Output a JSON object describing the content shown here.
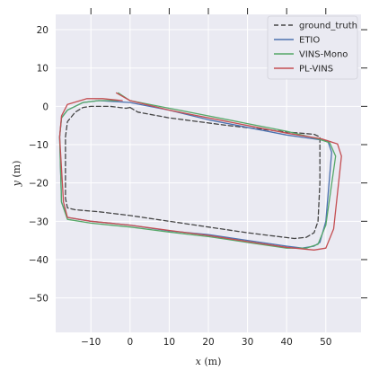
{
  "chart_data": {
    "type": "line",
    "title": "",
    "xlabel_var": "x",
    "xlabel_unit": " (m)",
    "ylabel_var": "y",
    "ylabel_unit": " (m)",
    "xlim": [
      -19,
      59
    ],
    "ylim": [
      -59,
      24
    ],
    "xticks": [
      -10,
      0,
      10,
      20,
      30,
      40,
      50
    ],
    "yticks": [
      20,
      10,
      0,
      -10,
      -20,
      -30,
      -40,
      -50
    ],
    "grid": true,
    "legend_position": "top-right",
    "series": [
      {
        "name": "ground_truth",
        "color": "#444444",
        "dash": "dashed",
        "x": [
          0,
          2,
          10,
          25,
          40,
          47,
          48.5,
          48.5,
          48,
          47,
          45,
          42,
          38,
          30,
          20,
          10,
          0,
          -8,
          -14,
          -16,
          -16.5,
          -16.5,
          -16,
          -14,
          -12,
          -10,
          -5,
          -1,
          0
        ],
        "y": [
          -0.3,
          -1.5,
          -3,
          -5,
          -6.7,
          -7.3,
          -8,
          -20,
          -30,
          -33,
          -34.2,
          -34.5,
          -34,
          -33,
          -31.5,
          -30,
          -28.5,
          -27.5,
          -27,
          -26.5,
          -24,
          -8,
          -4,
          -1.5,
          -0.3,
          0,
          0,
          -0.5,
          -0.3
        ]
      },
      {
        "name": "ETIO",
        "color": "#4c72b0",
        "dash": "solid",
        "x": [
          0,
          5,
          10,
          20,
          30,
          40,
          47,
          50.5,
          51.5,
          50,
          48.5,
          47,
          44,
          40,
          30,
          20,
          10,
          0,
          -10,
          -16,
          -17.5,
          -18,
          -17.5,
          -16,
          -12,
          -8,
          0
        ],
        "y": [
          1,
          0,
          -1,
          -3.5,
          -5.5,
          -7.5,
          -8.5,
          -9,
          -12,
          -30,
          -35.5,
          -36.5,
          -37,
          -36.5,
          -35,
          -33.5,
          -32.5,
          -31,
          -30,
          -29,
          -25,
          -8,
          -3,
          -1,
          1,
          1.5,
          1
        ]
      },
      {
        "name": "VINS-Mono",
        "color": "#55a868",
        "dash": "solid",
        "x": [
          -3,
          0,
          10,
          20,
          30,
          40,
          48,
          51,
          52.5,
          50,
          48,
          45,
          40,
          30,
          20,
          10,
          0,
          -10,
          -16,
          -17.5,
          -18,
          -17.5,
          -16,
          -12,
          -8,
          -3
        ],
        "y": [
          3.5,
          1.5,
          -0.5,
          -2.5,
          -4.5,
          -6.5,
          -8.5,
          -9.5,
          -13,
          -31,
          -36,
          -37,
          -37,
          -35.5,
          -34,
          -32.8,
          -31.5,
          -30.5,
          -29.5,
          -25,
          -8,
          -3,
          -1,
          1,
          1.5,
          1.5
        ]
      },
      {
        "name": "PL-VINS",
        "color": "#c44e52",
        "dash": "solid",
        "x": [
          -3.5,
          0,
          10,
          20,
          30,
          40,
          49,
          53,
          54,
          52,
          50,
          47,
          40,
          30,
          20,
          10,
          0,
          -10,
          -16,
          -17,
          -18,
          -17.5,
          -16,
          -11,
          -7,
          -2
        ],
        "y": [
          3.5,
          1.5,
          -1,
          -3,
          -5,
          -7,
          -8.5,
          -9.8,
          -13,
          -32,
          -37,
          -37.5,
          -36.8,
          -35.3,
          -33.7,
          -32.4,
          -31,
          -30,
          -29,
          -25,
          -8,
          -2.5,
          0.5,
          2,
          2,
          1.5
        ]
      }
    ]
  }
}
